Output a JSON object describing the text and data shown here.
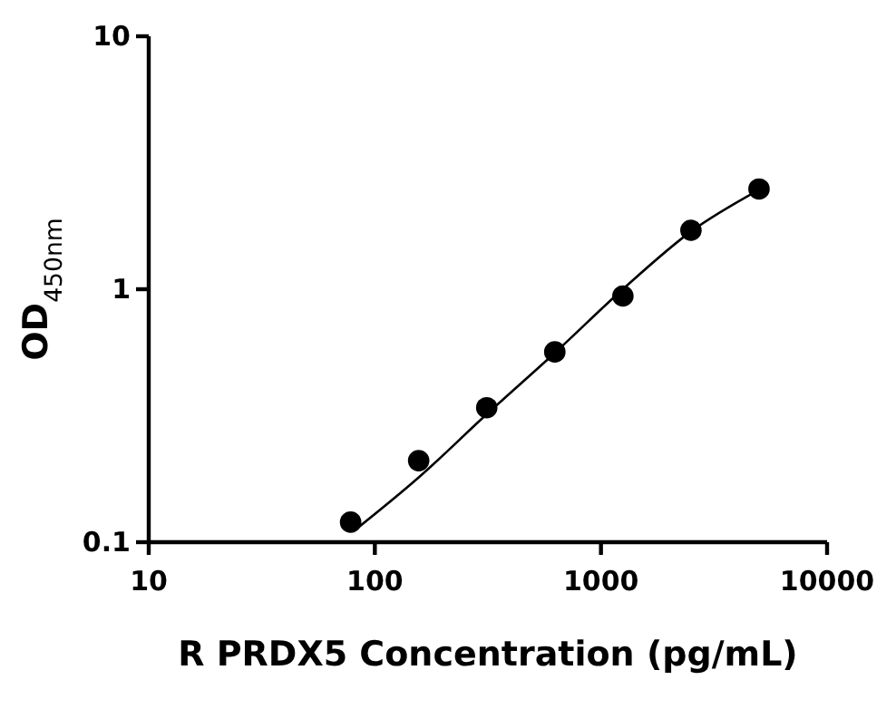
{
  "chart_data": {
    "type": "scatter",
    "xlabel": "R PRDX5 Concentration (pg/mL)",
    "ylabel": "OD$_{450nm}$",
    "log": "xy",
    "xlim": [
      10,
      10000
    ],
    "xticks": [
      10,
      100,
      1000,
      10000
    ],
    "ylim": [
      0.1,
      10
    ],
    "yticks": [
      0.1,
      1,
      10
    ],
    "series": [
      {
        "marker": "circle",
        "color": "#000000",
        "x": [
          78.125,
          156.25,
          312.5,
          625,
          1250,
          2500,
          5000
        ],
        "values": [
          0.12,
          0.21,
          0.34,
          0.565,
          0.94,
          1.71,
          2.49
        ]
      },
      {
        "type": "line",
        "color": "#000000",
        "x": [
          80,
          156,
          312,
          625,
          1250,
          2500,
          5000
        ],
        "values": [
          0.11,
          0.18,
          0.32,
          0.56,
          1.0,
          1.69,
          2.47
        ]
      }
    ]
  }
}
